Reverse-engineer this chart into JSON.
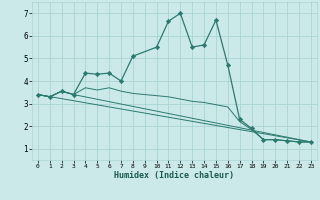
{
  "xlabel": "Humidex (Indice chaleur)",
  "bg_color": "#cce9e9",
  "grid_color": "#aad4d4",
  "line_color": "#2a7a70",
  "xlim": [
    -0.5,
    23.5
  ],
  "ylim": [
    0.5,
    7.5
  ],
  "yticks": [
    1,
    2,
    3,
    4,
    5,
    6,
    7
  ],
  "xticks": [
    0,
    1,
    2,
    3,
    4,
    5,
    6,
    7,
    8,
    9,
    10,
    11,
    12,
    13,
    14,
    15,
    16,
    17,
    18,
    19,
    20,
    21,
    22,
    23
  ],
  "line1_x": [
    0,
    1,
    2,
    3,
    4,
    5,
    6,
    7,
    8,
    10,
    11,
    12,
    13,
    14,
    15,
    16,
    17,
    18,
    19,
    20,
    21,
    22,
    23
  ],
  "line1_y": [
    3.4,
    3.3,
    3.55,
    3.4,
    4.35,
    4.3,
    4.35,
    4.0,
    5.1,
    5.5,
    6.65,
    7.0,
    5.5,
    5.6,
    6.7,
    4.7,
    2.3,
    1.9,
    1.4,
    1.4,
    1.35,
    1.3,
    1.3
  ],
  "line2_x": [
    0,
    1,
    2,
    3,
    4,
    5,
    6,
    7,
    8,
    10,
    11,
    12,
    13,
    14,
    15,
    16,
    17,
    18,
    19,
    20,
    21,
    22,
    23
  ],
  "line2_y": [
    3.4,
    3.3,
    3.55,
    3.4,
    3.7,
    3.6,
    3.7,
    3.55,
    3.45,
    3.35,
    3.3,
    3.2,
    3.1,
    3.05,
    2.95,
    2.85,
    2.2,
    1.85,
    1.4,
    1.4,
    1.35,
    1.3,
    1.3
  ],
  "line3_x": [
    0,
    1,
    2,
    3,
    23
  ],
  "line3_y": [
    3.4,
    3.3,
    3.55,
    3.4,
    1.3
  ],
  "line4_x": [
    0,
    23
  ],
  "line4_y": [
    3.4,
    1.3
  ]
}
